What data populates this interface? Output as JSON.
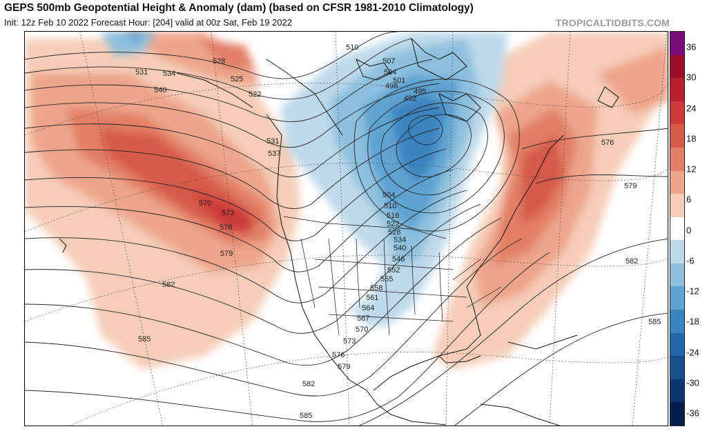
{
  "header": {
    "title": "GEPS 500mb Geopotential Height & Anomaly (dam) (based on CFSR 1981-2010 Climatology)",
    "subtitle": "Init: 12z Feb 10 2022   Forecast Hour: [204]   valid at 00z Sat, Feb 19 2022",
    "credit": "TROPICALTIDBITS.COM"
  },
  "colorbar": {
    "ticks": [
      "36",
      "30",
      "24",
      "18",
      "12",
      "6",
      "0",
      "-6",
      "-12",
      "-18",
      "-24",
      "-30",
      "-36"
    ],
    "colors": [
      "#7a0a7a",
      "#9a0f2a",
      "#b8202e",
      "#cc3a3a",
      "#d65a48",
      "#e27f66",
      "#eda58c",
      "#f6cdb8",
      "#ffffff",
      "#bed9ea",
      "#8ec0de",
      "#5fa3d2",
      "#3a84c0",
      "#2369a8",
      "#154f8c",
      "#0b3670",
      "#041f4d"
    ]
  },
  "contour_labels": [
    {
      "text": "531",
      "id": "l531a"
    },
    {
      "text": "534",
      "id": "l534a"
    },
    {
      "text": "540",
      "id": "l540a"
    },
    {
      "text": "528",
      "id": "l528a"
    },
    {
      "text": "525",
      "id": "l525a"
    },
    {
      "text": "522",
      "id": "l522a"
    },
    {
      "text": "531",
      "id": "l531b"
    },
    {
      "text": "537",
      "id": "l537a"
    },
    {
      "text": "510",
      "id": "l510a"
    },
    {
      "text": "507",
      "id": "l507a"
    },
    {
      "text": "504",
      "id": "l504a"
    },
    {
      "text": "501",
      "id": "l501a"
    },
    {
      "text": "498",
      "id": "l498a"
    },
    {
      "text": "495",
      "id": "l495a"
    },
    {
      "text": "492",
      "id": "l492a"
    },
    {
      "text": "504",
      "id": "l504b"
    },
    {
      "text": "510",
      "id": "l510b"
    },
    {
      "text": "516",
      "id": "l516a"
    },
    {
      "text": "522",
      "id": "l522b"
    },
    {
      "text": "528",
      "id": "l528b"
    },
    {
      "text": "534",
      "id": "l534b"
    },
    {
      "text": "540",
      "id": "l540b"
    },
    {
      "text": "546",
      "id": "l546a"
    },
    {
      "text": "552",
      "id": "l552a"
    },
    {
      "text": "555",
      "id": "l555a"
    },
    {
      "text": "558",
      "id": "l558a"
    },
    {
      "text": "561",
      "id": "l561a"
    },
    {
      "text": "564",
      "id": "l564a"
    },
    {
      "text": "567",
      "id": "l567a"
    },
    {
      "text": "570",
      "id": "l570a"
    },
    {
      "text": "573",
      "id": "l573a"
    },
    {
      "text": "576",
      "id": "l576a"
    },
    {
      "text": "579",
      "id": "l579a"
    },
    {
      "text": "570",
      "id": "l570b"
    },
    {
      "text": "573",
      "id": "l573b"
    },
    {
      "text": "576",
      "id": "l576b"
    },
    {
      "text": "579",
      "id": "l579b"
    },
    {
      "text": "582",
      "id": "l582a"
    },
    {
      "text": "585",
      "id": "l585a"
    },
    {
      "text": "582",
      "id": "l582b"
    },
    {
      "text": "585",
      "id": "l585b"
    },
    {
      "text": "576",
      "id": "l576c"
    },
    {
      "text": "579",
      "id": "l579c"
    },
    {
      "text": "582",
      "id": "l582c"
    },
    {
      "text": "585",
      "id": "l585c"
    }
  ]
}
